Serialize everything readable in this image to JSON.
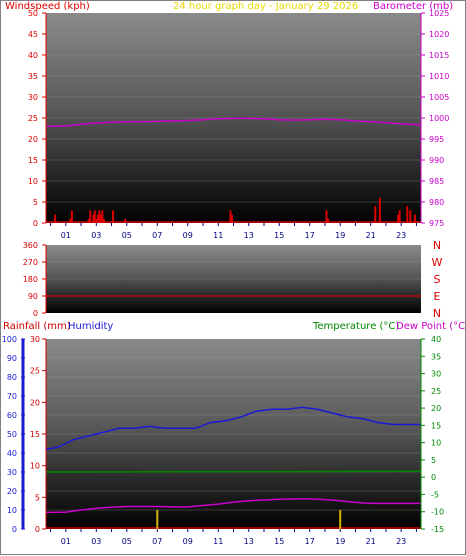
{
  "colors": {
    "wind": "#dd0000",
    "baro": "#cc00cc",
    "title": "#e8d800",
    "rain": "#cc0000",
    "humidity": "#1a1ad6",
    "temp": "#008800",
    "dew": "#cc00cc",
    "hour_ticks": "#000080"
  },
  "panel1": {
    "left_label": "Windspeed (kph)",
    "title": "24 hour graph day - January 29 2026",
    "right_label": "Barometer (mb)"
  },
  "panel3": {
    "rain_label": "Rainfall (mm)",
    "humidity_label": "Humidity",
    "temp_label": "Temperature (°C)",
    "dew_label": "Dew Point (°C)"
  },
  "chart_data": [
    {
      "type": "line",
      "x_tick_labels": [
        "01",
        "03",
        "05",
        "07",
        "09",
        "11",
        "13",
        "15",
        "17",
        "19",
        "21",
        "23"
      ],
      "y_left_ticks": [
        "0",
        "5",
        "10",
        "15",
        "20",
        "25",
        "30",
        "35",
        "40",
        "45",
        "50"
      ],
      "y_right_ticks": [
        "975",
        "980",
        "985",
        "990",
        "995",
        "1000",
        "1005",
        "1010",
        "1015",
        "1020",
        "1025"
      ],
      "y_left_range": [
        0,
        50
      ],
      "y_right_range": [
        975,
        1025
      ],
      "x_range": [
        -0.3,
        24.3
      ],
      "series": [
        {
          "name": "Windspeed (kph)",
          "axis": "left",
          "kind": "bar",
          "x": [
            0.3,
            1.3,
            1.4,
            2.5,
            2.6,
            2.8,
            2.9,
            3.0,
            3.1,
            3.2,
            3.3,
            3.4,
            3.5,
            4.1,
            4.9,
            11.8,
            11.9,
            18.1,
            18.2,
            21.3,
            21.6,
            22.8,
            22.9,
            23.4,
            23.6,
            23.9
          ],
          "values": [
            2,
            1,
            3,
            1,
            3,
            2,
            3,
            1,
            2,
            3,
            2,
            3,
            1,
            3,
            1,
            3,
            2,
            3,
            1,
            4,
            6,
            2,
            3,
            4,
            3,
            2
          ]
        },
        {
          "name": "Barometer (mb)",
          "axis": "right",
          "kind": "line",
          "x": [
            -0.3,
            1,
            2,
            3,
            4,
            5,
            6,
            7,
            8,
            9,
            10,
            11,
            12,
            13,
            14,
            15,
            16,
            17,
            18,
            19,
            20,
            21,
            22,
            23,
            24.3
          ],
          "values": [
            998.0,
            998.1,
            998.5,
            998.8,
            999.0,
            999.1,
            999.1,
            999.2,
            999.3,
            999.4,
            999.6,
            999.8,
            999.9,
            999.9,
            999.8,
            999.6,
            999.5,
            999.6,
            999.7,
            999.6,
            999.3,
            999.1,
            998.9,
            998.6,
            998.4
          ]
        }
      ]
    },
    {
      "type": "line",
      "y_left_ticks": [
        "0",
        "90",
        "180",
        "270",
        "360"
      ],
      "y_left_range": [
        0,
        360
      ],
      "y_right_labels": [
        "N",
        "W",
        "S",
        "E",
        "N"
      ],
      "x_range": [
        -0.3,
        24.3
      ],
      "series": [
        {
          "name": "Wind direction",
          "axis": "left",
          "kind": "line",
          "x": [
            -0.3,
            24.3
          ],
          "values": [
            90,
            90
          ]
        }
      ]
    },
    {
      "type": "line",
      "x_tick_labels": [
        "01",
        "03",
        "05",
        "07",
        "09",
        "11",
        "13",
        "15",
        "17",
        "19",
        "21",
        "23"
      ],
      "y_humidity_ticks": [
        "0",
        "10",
        "20",
        "30",
        "40",
        "50",
        "60",
        "70",
        "80",
        "90",
        "100"
      ],
      "y_rain_ticks": [
        "0",
        "5",
        "10",
        "15",
        "20",
        "25",
        "30"
      ],
      "y_temp_ticks": [
        "-15",
        "-10",
        "-5",
        "0",
        "5",
        "10",
        "15",
        "20",
        "25",
        "30",
        "35",
        "40"
      ],
      "y_humidity_range": [
        0,
        100
      ],
      "y_rain_range": [
        0,
        30
      ],
      "y_temp_range": [
        -15,
        40
      ],
      "x_range": [
        -0.3,
        24.3
      ],
      "series": [
        {
          "name": "Humidity",
          "axis": "humidity",
          "kind": "line",
          "x": [
            -0.3,
            0.5,
            1.5,
            2.5,
            3.5,
            4.5,
            5.5,
            6.5,
            7.5,
            8.5,
            9.5,
            10.5,
            11.5,
            12.5,
            13.5,
            14.5,
            15.5,
            16.5,
            17.5,
            18.5,
            19.5,
            20.5,
            21.5,
            22.5,
            23.5,
            24.3
          ],
          "values": [
            42,
            43,
            47,
            49,
            51,
            53,
            53,
            54,
            53,
            53,
            53,
            56,
            57,
            59,
            62,
            63,
            63,
            64,
            63,
            61,
            59,
            58,
            56,
            55,
            55,
            55
          ]
        },
        {
          "name": "Temperature (°C)",
          "axis": "temp",
          "kind": "line",
          "x": [
            -0.3,
            24.3
          ],
          "values": [
            1.5,
            1.7
          ]
        },
        {
          "name": "Dew Point (°C)",
          "axis": "temp",
          "kind": "line",
          "x": [
            -0.3,
            1,
            2,
            3,
            4,
            5,
            6,
            7,
            8,
            9,
            10,
            11,
            12,
            13,
            14,
            15,
            16,
            17,
            18,
            19,
            20,
            21,
            22,
            23,
            24.3
          ],
          "values": [
            -10.2,
            -10.1,
            -9.5,
            -9.0,
            -8.7,
            -8.5,
            -8.5,
            -8.5,
            -8.6,
            -8.6,
            -8.2,
            -7.8,
            -7.2,
            -6.8,
            -6.6,
            -6.4,
            -6.3,
            -6.3,
            -6.5,
            -6.8,
            -7.3,
            -7.6,
            -7.6,
            -7.6,
            -7.6
          ]
        },
        {
          "name": "Rainfall (mm)",
          "axis": "rain",
          "kind": "bar",
          "x": [
            7.0,
            19.0
          ],
          "values": [
            3.0,
            3.0
          ]
        }
      ]
    }
  ]
}
